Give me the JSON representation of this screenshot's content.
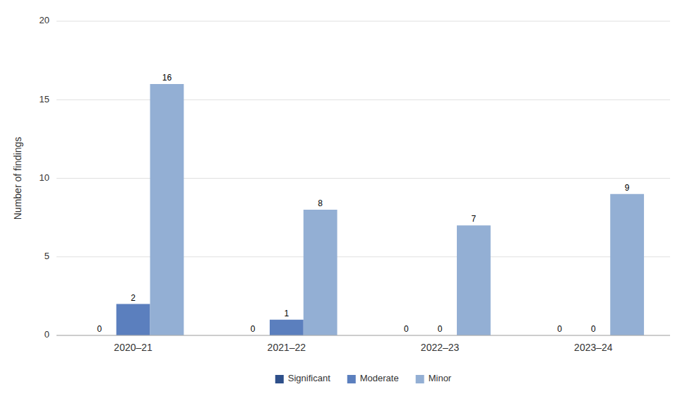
{
  "chart_data": {
    "type": "bar",
    "categories": [
      "2020–21",
      "2021–22",
      "2022–23",
      "2023–24"
    ],
    "series": [
      {
        "name": "Significant",
        "color": "#2e4f8a",
        "values": [
          0,
          0,
          0,
          0
        ]
      },
      {
        "name": "Moderate",
        "color": "#5b7fbe",
        "values": [
          2,
          1,
          0,
          0
        ]
      },
      {
        "name": "Minor",
        "color": "#93afd4",
        "values": [
          16,
          8,
          7,
          9
        ]
      }
    ],
    "ylabel": "Number of findings",
    "ylim": [
      0,
      20
    ],
    "yticks": [
      0,
      5,
      10,
      15,
      20
    ],
    "grid": true,
    "legend": "bottom",
    "data_labels": true
  }
}
